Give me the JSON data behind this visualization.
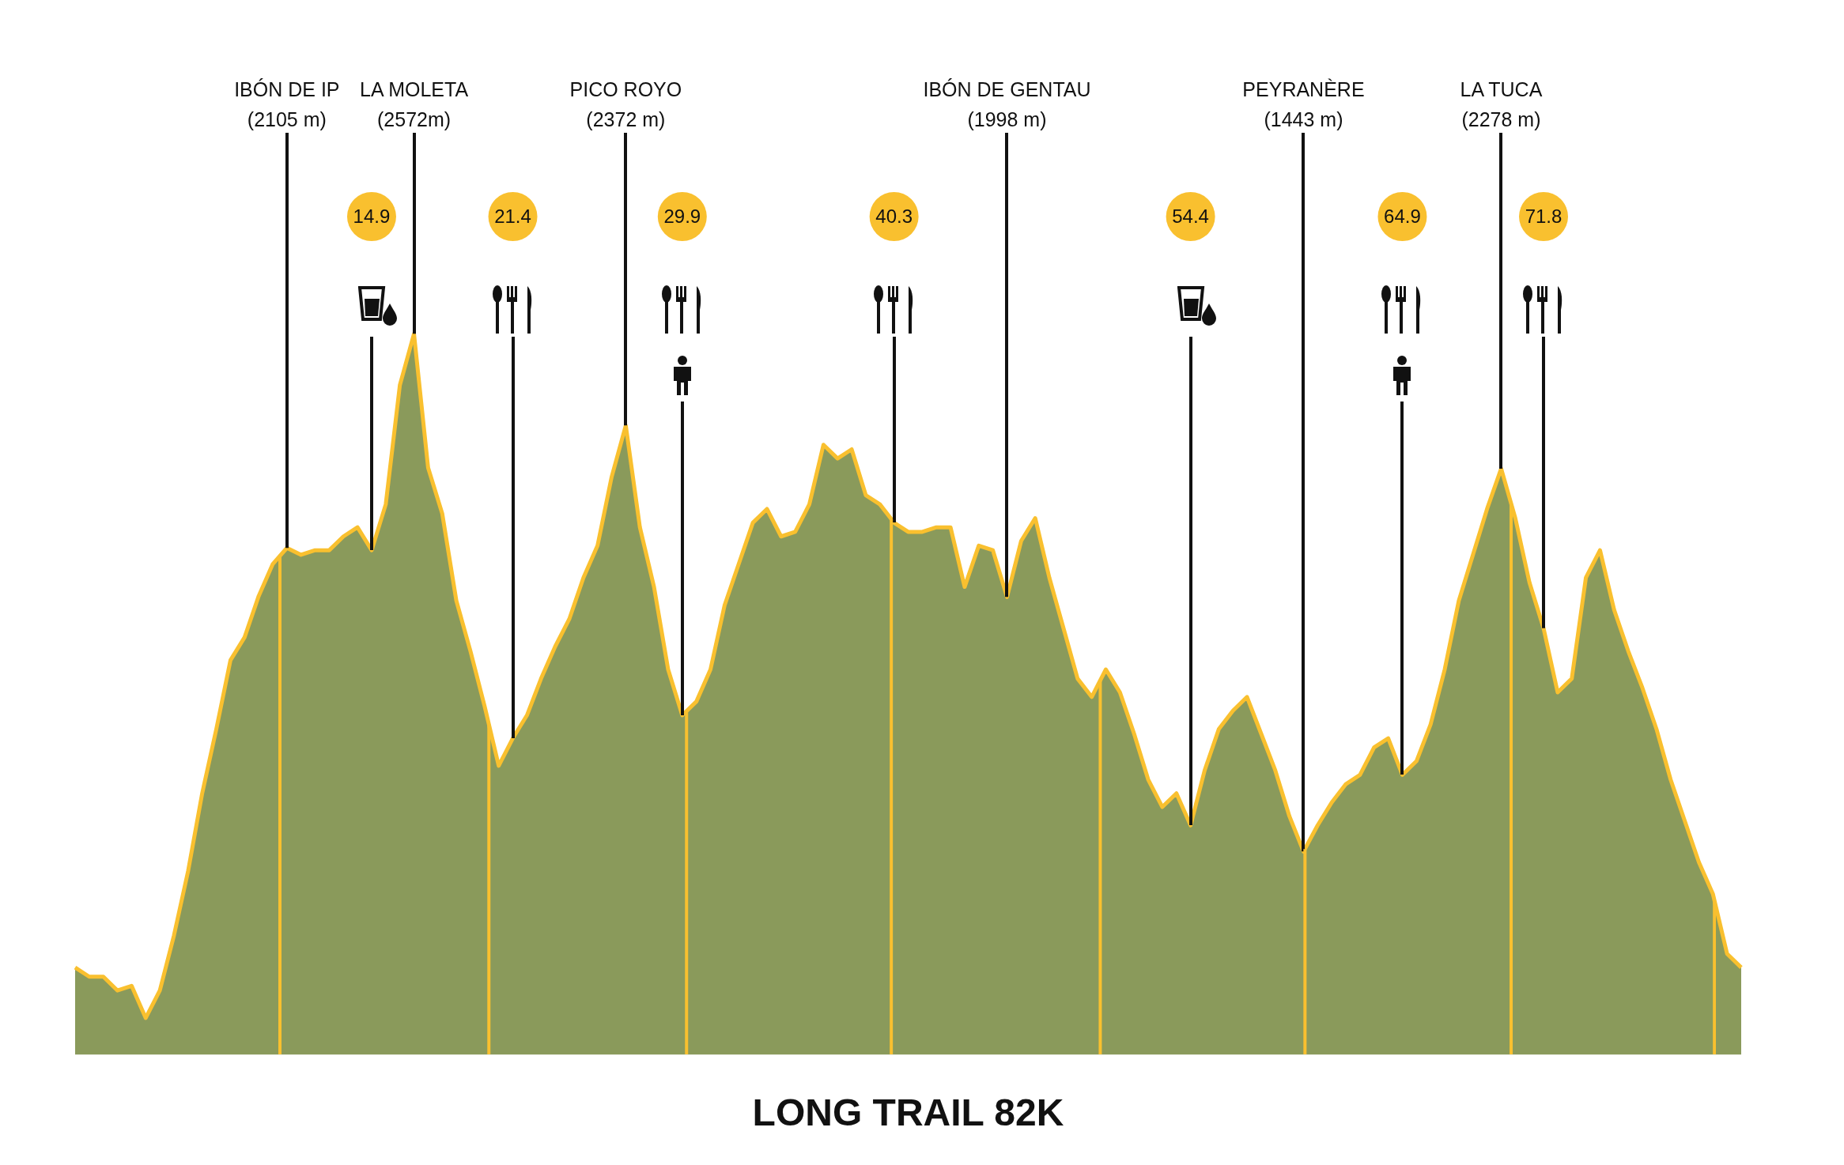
{
  "chart_data": {
    "type": "area",
    "title": "LONG TRAIL 82K",
    "tick_labels": false,
    "categories": [
      null,
      null,
      null,
      null,
      null,
      null,
      null,
      null,
      null,
      null,
      null,
      null,
      null,
      null,
      null,
      null,
      null,
      null,
      null,
      null,
      null,
      null,
      null,
      null,
      null,
      null,
      null,
      null,
      null,
      null,
      null,
      null,
      null,
      null,
      null,
      null,
      null,
      null,
      null,
      null,
      null,
      null,
      null,
      null,
      null,
      null,
      null,
      null,
      null,
      null,
      null,
      null,
      null,
      null,
      null,
      null,
      null,
      null,
      null,
      null,
      null,
      null,
      null,
      null,
      null,
      null,
      null,
      null,
      null,
      null,
      null,
      null,
      null,
      null,
      null,
      null,
      null,
      null,
      null,
      null,
      null,
      null,
      null,
      null,
      null,
      null,
      null,
      null,
      null,
      null,
      null,
      null,
      null,
      null,
      null,
      null,
      null,
      null,
      null,
      null,
      null,
      null,
      null,
      null,
      null,
      null,
      null,
      null,
      null,
      null,
      null,
      null,
      null,
      null,
      null,
      null,
      null,
      null,
      null
    ],
    "series": [
      {
        "color": "#8a9a5b",
        "values": [
          1190,
          1170,
          1170,
          1140,
          1150,
          1080,
          1140,
          1260,
          1400,
          1570,
          1710,
          1860,
          1910,
          2000,
          2070,
          2105,
          2090,
          2100,
          2100,
          2130,
          2150,
          2100,
          2200,
          2460,
          2572,
          2280,
          2180,
          1990,
          1880,
          1760,
          1630,
          1690,
          1740,
          1820,
          1890,
          1950,
          2040,
          2110,
          2260,
          2372,
          2150,
          2020,
          1840,
          1740,
          1770,
          1840,
          1980,
          2070,
          2160,
          2190,
          2130,
          2140,
          2200,
          2330,
          2300,
          2320,
          2220,
          2200,
          2160,
          2140,
          2140,
          2150,
          2150,
          2020,
          2110,
          2100,
          1998,
          2120,
          2170,
          2040,
          1930,
          1820,
          1780,
          1840,
          1790,
          1700,
          1600,
          1540,
          1570,
          1500,
          1620,
          1710,
          1750,
          1780,
          1700,
          1620,
          1520,
          1443,
          1500,
          1550,
          1590,
          1610,
          1670,
          1690,
          1610,
          1640,
          1720,
          1840,
          1990,
          2090,
          2190,
          2278,
          2170,
          2030,
          1930,
          1790,
          1820,
          2040,
          2100,
          1970,
          1880,
          1800,
          1710,
          1600,
          1510,
          1420,
          1350,
          1220,
          1190
        ],
        "value_labels": [
          null,
          null,
          null,
          null,
          null,
          null,
          null,
          null,
          null,
          null,
          null,
          null,
          null,
          null,
          null,
          "IBÓN DE IP\n(2105 m)",
          null,
          null,
          null,
          null,
          null,
          null,
          null,
          null,
          "LA MOLETA\n(2572m)",
          null,
          null,
          null,
          null,
          null,
          null,
          null,
          null,
          null,
          null,
          null,
          null,
          null,
          null,
          "PICO ROYO\n(2372 m)",
          null,
          null,
          null,
          null,
          null,
          null,
          null,
          null,
          null,
          null,
          null,
          null,
          null,
          null,
          null,
          null,
          null,
          null,
          null,
          null,
          null,
          null,
          null,
          null,
          null,
          null,
          "IBÓN DE GENTAU\n(1998 m)",
          null,
          null,
          null,
          null,
          null,
          null,
          null,
          null,
          null,
          null,
          null,
          null,
          null,
          null,
          null,
          null,
          null,
          null,
          null,
          null,
          "PEYRANÈRE\n(1443 m)",
          null,
          null,
          null,
          null,
          null,
          null,
          null,
          null,
          null,
          null,
          null,
          null,
          null,
          "LA TUCA\n(2278 m)",
          null,
          null,
          null,
          null,
          null,
          null,
          null,
          null,
          null,
          null,
          null,
          null,
          null,
          null,
          null,
          null,
          null
        ]
      }
    ],
    "annotations": [
      "14.9",
      "21.4",
      "29.9",
      "40.3",
      "54.4",
      "64.9",
      "71.8"
    ]
  }
}
